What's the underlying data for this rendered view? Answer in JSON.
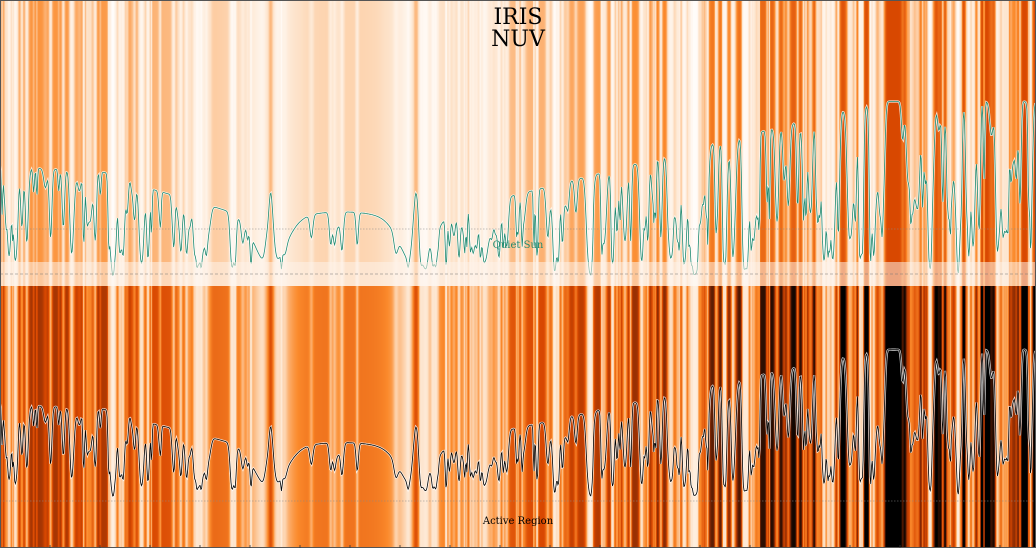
{
  "figure": {
    "title_line1": "IRIS",
    "title_line2": "NUV"
  },
  "chart_data": [
    {
      "type": "line",
      "panel": "top",
      "label": "Quiet Sun",
      "label_color": "#1f8a70",
      "line_color": "#1f8a70",
      "background": "spectral intensity stripes (orange colormap)",
      "colormap": [
        "#ffffff",
        "#fde0c5",
        "#fb8a2c",
        "#d94801",
        "#7f2704",
        "#000000"
      ],
      "grid": false
    },
    {
      "type": "line",
      "panel": "bottom",
      "label": "Active Region",
      "label_color": "#000000",
      "line_color": "#000000",
      "background": "spectral intensity stripes (orange colormap)",
      "colormap": [
        "#ffffff",
        "#fde0c5",
        "#fb8a2c",
        "#d94801",
        "#7f2704",
        "#000000"
      ],
      "grid": false
    }
  ]
}
